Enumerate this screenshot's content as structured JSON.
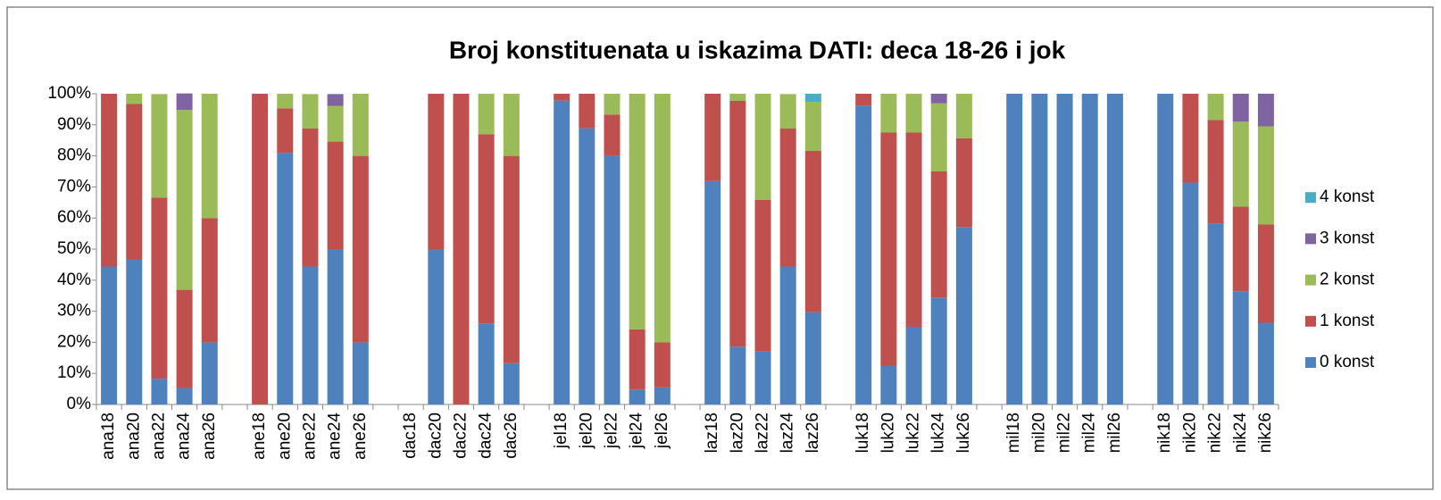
{
  "chart_data": {
    "type": "stacked-bar",
    "title": "Broj konstituenata u iskazima DATI: deca 18-26 i jok",
    "categories": [
      "ana18",
      "ana20",
      "ana22",
      "ana24",
      "ana26",
      null,
      "ane18",
      "ane20",
      "ane22",
      "ane24",
      "ane26",
      null,
      "dac18",
      "dac20",
      "dac22",
      "dac24",
      "dac26",
      null,
      "jel18",
      "jel20",
      "jel22",
      "jel24",
      "jel26",
      null,
      "laz18",
      "laz20",
      "laz22",
      "laz24",
      "laz26",
      null,
      "luk18",
      "luk20",
      "luk22",
      "luk24",
      "luk26",
      null,
      "mil18",
      "mil20",
      "mil22",
      "mil24",
      "mil26",
      null,
      "nik18",
      "nik20",
      "nik22",
      "nik24",
      "nik26"
    ],
    "series": [
      {
        "name": "0 konst",
        "color": "#4f81bd",
        "values": [
          44.4,
          46.7,
          8.3,
          5.3,
          20,
          null,
          0,
          81,
          44.4,
          50,
          20,
          null,
          0,
          50,
          0,
          26.1,
          13.3,
          null,
          97.8,
          88.9,
          80,
          4.8,
          5.5,
          null,
          71.9,
          18.6,
          17,
          44.4,
          29.7,
          null,
          96.2,
          12.5,
          25,
          34.4,
          57.1,
          null,
          100,
          100,
          100,
          100,
          100,
          null,
          100,
          71.4,
          58.3,
          36.4,
          26.3
        ]
      },
      {
        "name": "1 konst",
        "color": "#c0504d",
        "values": [
          55.6,
          50,
          58.3,
          31.6,
          40,
          null,
          100,
          14.3,
          44.4,
          34.6,
          60,
          null,
          0,
          50,
          100,
          60.9,
          66.7,
          null,
          2.2,
          11.1,
          13.3,
          19.4,
          14.5,
          null,
          28.1,
          79.1,
          48.9,
          44.4,
          51.9,
          null,
          3.8,
          75,
          62.5,
          40.6,
          28.6,
          null,
          0,
          0,
          0,
          0,
          0,
          null,
          0,
          28.6,
          33.3,
          27.3,
          31.6
        ]
      },
      {
        "name": "2 konst",
        "color": "#9bbb59",
        "values": [
          0,
          3.3,
          33.3,
          57.9,
          40,
          null,
          0,
          4.7,
          11.1,
          11.5,
          20,
          null,
          0,
          0,
          0,
          13,
          20,
          null,
          0,
          0,
          6.7,
          75.8,
          80,
          null,
          0,
          2.3,
          34.1,
          11.1,
          15.8,
          null,
          0,
          12.5,
          12.5,
          21.9,
          14.3,
          null,
          0,
          0,
          0,
          0,
          0,
          null,
          0,
          0,
          8.4,
          27.3,
          31.6
        ]
      },
      {
        "name": "3 konst",
        "color": "#8064a2",
        "values": [
          0,
          0,
          0,
          5.3,
          0,
          null,
          0,
          0,
          0,
          3.8,
          0,
          null,
          0,
          0,
          0,
          0,
          0,
          null,
          0,
          0,
          0,
          0,
          0,
          null,
          0,
          0,
          0,
          0,
          0,
          null,
          0,
          0,
          0,
          3.1,
          0,
          null,
          0,
          0,
          0,
          0,
          0,
          null,
          0,
          0,
          0,
          9,
          10.5
        ]
      },
      {
        "name": "4 konst",
        "color": "#4bacc6",
        "values": [
          0,
          0,
          0,
          0,
          0,
          null,
          0,
          0,
          0,
          0,
          0,
          null,
          0,
          0,
          0,
          0,
          0,
          null,
          0,
          0,
          0,
          0,
          0,
          null,
          0,
          0,
          0,
          0,
          2.6,
          null,
          0,
          0,
          0,
          0,
          0,
          null,
          0,
          0,
          0,
          0,
          0,
          null,
          0,
          0,
          0,
          0,
          0
        ]
      }
    ],
    "ylim": [
      0,
      100
    ],
    "yticks": [
      {
        "value": 0,
        "label": "0%"
      },
      {
        "value": 10,
        "label": "10%"
      },
      {
        "value": 20,
        "label": "20%"
      },
      {
        "value": 30,
        "label": "30%"
      },
      {
        "value": 40,
        "label": "40%"
      },
      {
        "value": 50,
        "label": "50%"
      },
      {
        "value": 60,
        "label": "60%"
      },
      {
        "value": 70,
        "label": "70%"
      },
      {
        "value": 80,
        "label": "80%"
      },
      {
        "value": 90,
        "label": "90%"
      },
      {
        "value": 100,
        "label": "100%"
      }
    ],
    "legend": "right"
  }
}
